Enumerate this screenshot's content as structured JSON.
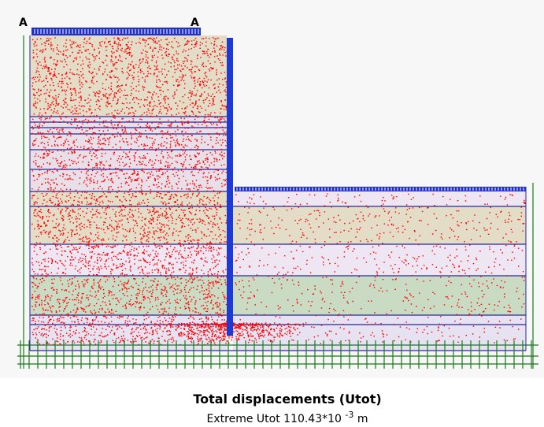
{
  "labels": {
    "left": "A",
    "right": "A"
  },
  "caption": {
    "title": "Total displacements (Utot)",
    "line": "Extreme Utot 110.43*10",
    "exponent": "-3",
    "unit": "m"
  }
}
